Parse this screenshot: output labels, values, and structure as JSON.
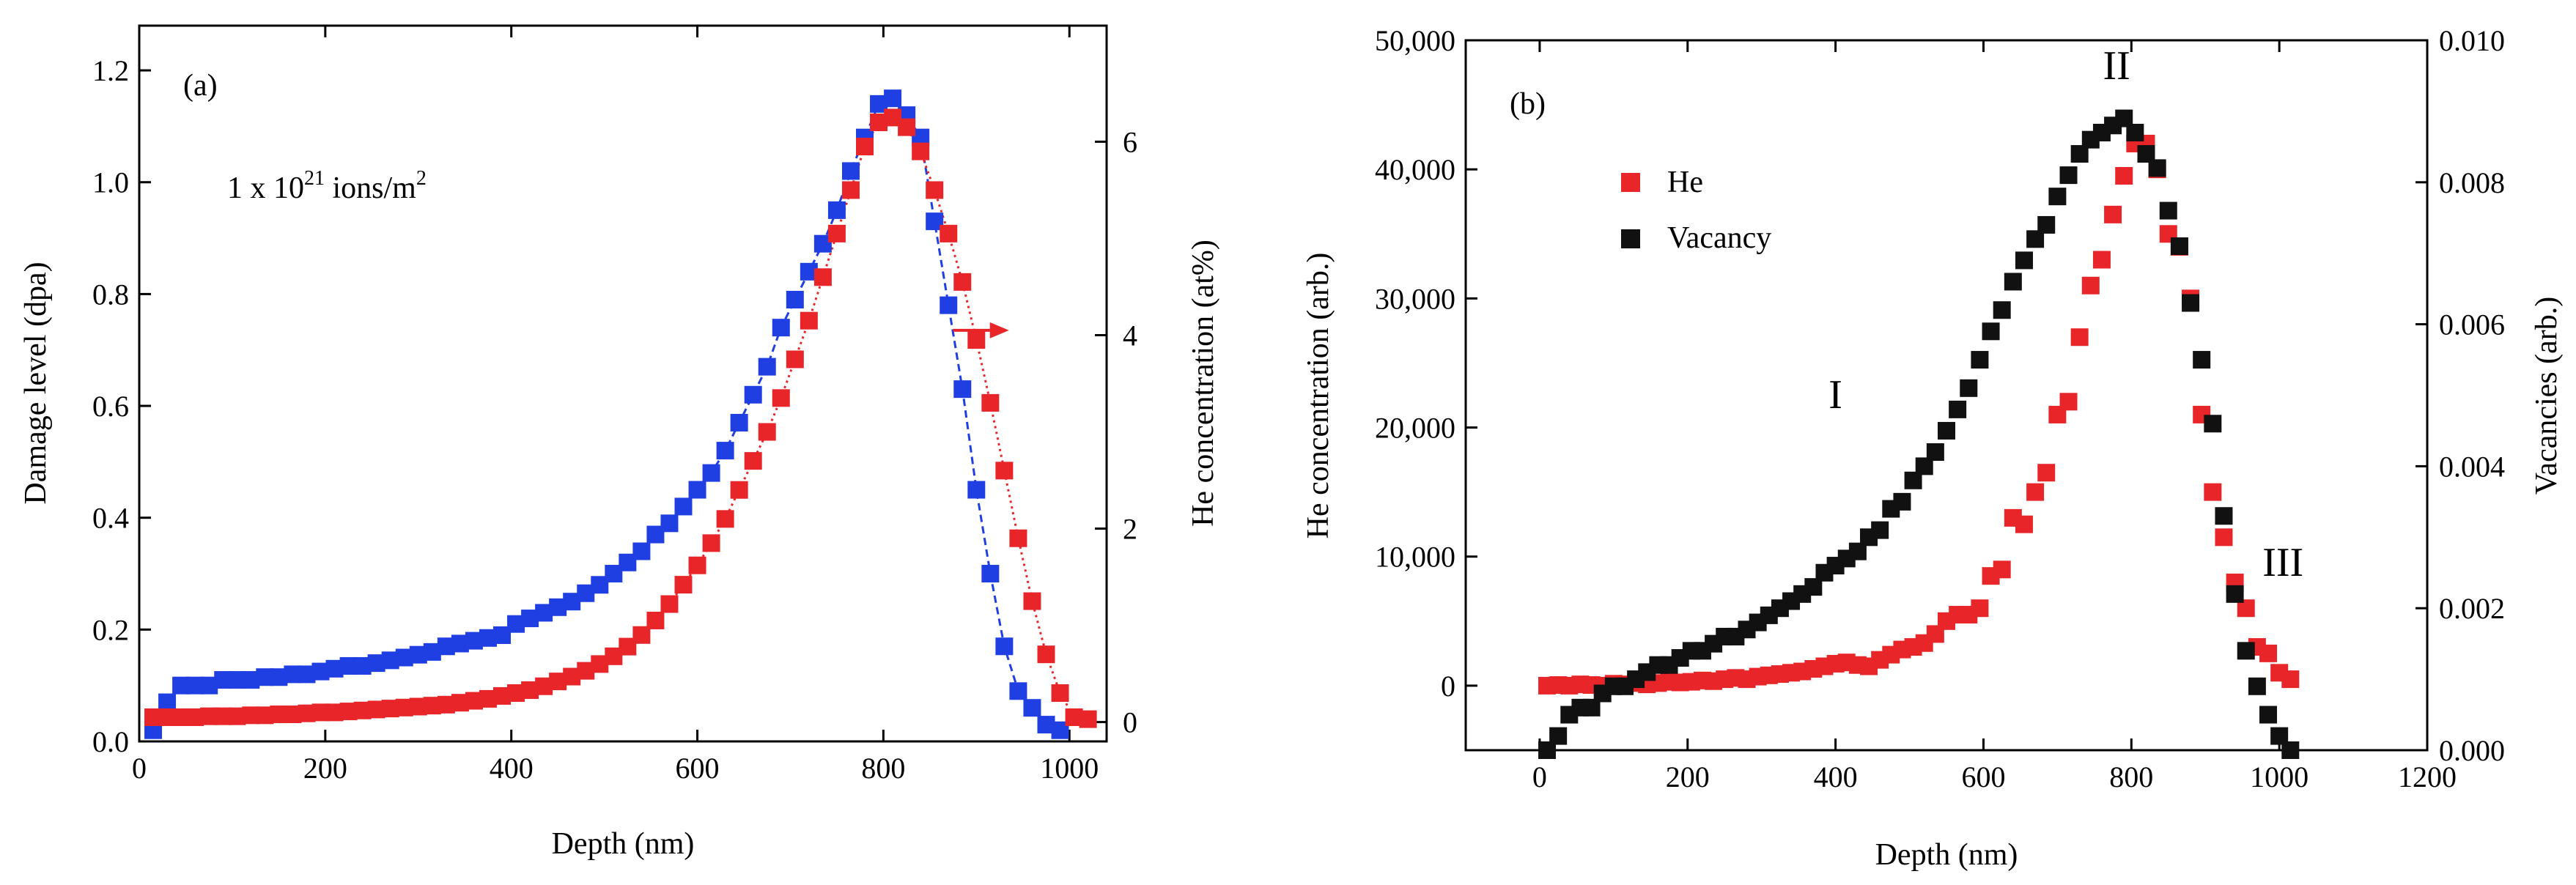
{
  "chart_data": [
    {
      "type": "scatter",
      "panel_label": "(a)",
      "annotation": {
        "prefix": "1 x 10",
        "exponent": "21",
        "unit_prefix": " ions/m",
        "unit_exponent": "2"
      },
      "xlabel": "Depth (nm)",
      "ylabel_left": "Damage level (dpa)",
      "ylabel_right": "He concentration (at%)",
      "xlim": [
        0,
        1040
      ],
      "ylim_left": [
        0,
        1.28
      ],
      "ylim_right": [
        -0.2,
        7.2
      ],
      "xticks": [
        0,
        200,
        400,
        600,
        800,
        1000
      ],
      "yticks_left": [
        0.0,
        0.2,
        0.4,
        0.6,
        0.8,
        1.0,
        1.2
      ],
      "yticks_right": [
        0,
        2,
        4,
        6
      ],
      "arrow": {
        "x": 875,
        "y_right": 4.05,
        "x_end": 935,
        "color": "#e8262a",
        "points": "right"
      },
      "series": [
        {
          "name": "Damage level",
          "axis": "left",
          "color": "#1f3fe3",
          "line": "dashed",
          "x": [
            15,
            30,
            45,
            60,
            75,
            90,
            105,
            120,
            135,
            150,
            165,
            180,
            195,
            210,
            225,
            240,
            255,
            270,
            285,
            300,
            315,
            330,
            345,
            360,
            375,
            390,
            405,
            420,
            435,
            450,
            465,
            480,
            495,
            510,
            525,
            540,
            555,
            570,
            585,
            600,
            615,
            630,
            645,
            660,
            675,
            690,
            705,
            720,
            735,
            750,
            765,
            780,
            795,
            810,
            825,
            840,
            855,
            870,
            885,
            900,
            915,
            930,
            945,
            960,
            975,
            990
          ],
          "y": [
            0.02,
            0.07,
            0.1,
            0.1,
            0.1,
            0.11,
            0.11,
            0.11,
            0.115,
            0.115,
            0.12,
            0.12,
            0.125,
            0.13,
            0.135,
            0.135,
            0.14,
            0.145,
            0.15,
            0.155,
            0.16,
            0.17,
            0.175,
            0.18,
            0.185,
            0.19,
            0.21,
            0.22,
            0.23,
            0.24,
            0.25,
            0.265,
            0.28,
            0.3,
            0.32,
            0.34,
            0.37,
            0.39,
            0.42,
            0.45,
            0.48,
            0.52,
            0.57,
            0.62,
            0.67,
            0.74,
            0.79,
            0.84,
            0.89,
            0.95,
            1.02,
            1.08,
            1.14,
            1.15,
            1.12,
            1.08,
            0.93,
            0.78,
            0.63,
            0.45,
            0.3,
            0.17,
            0.09,
            0.06,
            0.03,
            0.02
          ]
        },
        {
          "name": "He concentration",
          "axis": "right",
          "color": "#e8262a",
          "line": "dotted",
          "x": [
            15,
            30,
            45,
            60,
            75,
            90,
            105,
            120,
            135,
            150,
            165,
            180,
            195,
            210,
            225,
            240,
            255,
            270,
            285,
            300,
            315,
            330,
            345,
            360,
            375,
            390,
            405,
            420,
            435,
            450,
            465,
            480,
            495,
            510,
            525,
            540,
            555,
            570,
            585,
            600,
            615,
            630,
            645,
            660,
            675,
            690,
            705,
            720,
            735,
            750,
            765,
            780,
            795,
            810,
            825,
            840,
            855,
            870,
            885,
            900,
            915,
            930,
            945,
            960,
            975,
            990,
            1005,
            1020
          ],
          "y": [
            0.05,
            0.05,
            0.05,
            0.05,
            0.06,
            0.06,
            0.06,
            0.07,
            0.07,
            0.08,
            0.08,
            0.09,
            0.1,
            0.1,
            0.11,
            0.12,
            0.13,
            0.14,
            0.15,
            0.16,
            0.17,
            0.18,
            0.2,
            0.22,
            0.24,
            0.27,
            0.3,
            0.33,
            0.37,
            0.42,
            0.47,
            0.53,
            0.6,
            0.68,
            0.78,
            0.9,
            1.05,
            1.22,
            1.42,
            1.62,
            1.85,
            2.1,
            2.4,
            2.7,
            3.0,
            3.35,
            3.75,
            4.15,
            4.6,
            5.05,
            5.5,
            5.95,
            6.2,
            6.25,
            6.15,
            5.9,
            5.5,
            5.05,
            4.55,
            3.95,
            3.3,
            2.6,
            1.9,
            1.25,
            0.7,
            0.3,
            0.05,
            0.03
          ]
        }
      ]
    },
    {
      "type": "scatter",
      "panel_label": "(b)",
      "xlabel": "Depth (nm)",
      "ylabel_left": "He concentration (arb.)",
      "ylabel_right": "Vacancies (arb.)",
      "xlim": [
        -100,
        1200
      ],
      "ylim_left": [
        -5000,
        50000
      ],
      "ylim_right": [
        0.0,
        0.01
      ],
      "xticks": [
        0,
        200,
        400,
        600,
        800,
        1000,
        1200
      ],
      "yticks_left": [
        0,
        10000,
        20000,
        30000,
        40000,
        50000
      ],
      "yticks_left_labels": [
        "0",
        "10,000",
        "20,000",
        "30,000",
        "40,000",
        "50,000"
      ],
      "yticks_right": [
        0.0,
        0.002,
        0.004,
        0.006,
        0.008,
        0.01
      ],
      "yticks_right_labels": [
        "0.000",
        "0.002",
        "0.004",
        "0.006",
        "0.008",
        "0.010"
      ],
      "region_labels": [
        {
          "text": "I",
          "x": 400,
          "y_left": 21500
        },
        {
          "text": "II",
          "x": 780,
          "y_left": 47000
        },
        {
          "text": "III",
          "x": 1005,
          "y_left": 8500
        }
      ],
      "legend": [
        {
          "label": "He",
          "color": "#e8262a"
        },
        {
          "label": "Vacancy",
          "color": "#111111"
        }
      ],
      "series": [
        {
          "name": "He",
          "axis": "left",
          "color": "#e8262a",
          "x": [
            10,
            25,
            40,
            55,
            70,
            85,
            100,
            115,
            130,
            145,
            160,
            175,
            190,
            205,
            220,
            235,
            250,
            265,
            280,
            295,
            310,
            325,
            340,
            355,
            370,
            385,
            400,
            415,
            430,
            445,
            460,
            475,
            490,
            505,
            520,
            535,
            550,
            565,
            580,
            595,
            610,
            625,
            640,
            655,
            670,
            685,
            700,
            715,
            730,
            745,
            760,
            775,
            790,
            805,
            820,
            835,
            850,
            865,
            880,
            895,
            910,
            925,
            940,
            955,
            970,
            985,
            1000,
            1015
          ],
          "y": [
            0,
            50,
            0,
            100,
            50,
            0,
            150,
            100,
            200,
            100,
            200,
            300,
            250,
            300,
            400,
            350,
            500,
            600,
            500,
            700,
            800,
            900,
            1000,
            1100,
            1300,
            1500,
            1700,
            1800,
            1600,
            1500,
            2000,
            2400,
            2800,
            3000,
            3300,
            4000,
            5000,
            5500,
            5500,
            6000,
            8500,
            9000,
            13000,
            12500,
            15000,
            16500,
            21000,
            22000,
            27000,
            31000,
            33000,
            36500,
            39500,
            42000,
            42000,
            40000,
            35000,
            34000,
            30000,
            21000,
            15000,
            11500,
            8000,
            6000,
            3000,
            2500,
            1000,
            500
          ]
        },
        {
          "name": "Vacancy",
          "axis": "right",
          "color": "#111111",
          "x": [
            10,
            25,
            40,
            55,
            70,
            85,
            100,
            115,
            130,
            145,
            160,
            175,
            190,
            205,
            220,
            235,
            250,
            265,
            280,
            295,
            310,
            325,
            340,
            355,
            370,
            385,
            400,
            415,
            430,
            445,
            460,
            475,
            490,
            505,
            520,
            535,
            550,
            565,
            580,
            595,
            610,
            625,
            640,
            655,
            670,
            685,
            700,
            715,
            730,
            745,
            760,
            775,
            790,
            805,
            820,
            835,
            850,
            865,
            880,
            895,
            910,
            925,
            940,
            955,
            970,
            985,
            1000,
            1015
          ],
          "y": [
            0.0,
            0.0002,
            0.0005,
            0.0006,
            0.0006,
            0.0008,
            0.0009,
            0.0009,
            0.001,
            0.0011,
            0.0012,
            0.0012,
            0.0013,
            0.0014,
            0.0014,
            0.0015,
            0.0016,
            0.0016,
            0.0017,
            0.0018,
            0.0019,
            0.002,
            0.0021,
            0.0022,
            0.0023,
            0.0025,
            0.0026,
            0.0027,
            0.0028,
            0.003,
            0.0031,
            0.0034,
            0.0035,
            0.0038,
            0.004,
            0.0042,
            0.0045,
            0.0048,
            0.0051,
            0.0055,
            0.0059,
            0.0062,
            0.0066,
            0.0069,
            0.0072,
            0.0074,
            0.0078,
            0.0081,
            0.0084,
            0.0086,
            0.0087,
            0.0088,
            0.0089,
            0.0087,
            0.0084,
            0.0082,
            0.0076,
            0.0071,
            0.0063,
            0.0055,
            0.0046,
            0.0033,
            0.0022,
            0.0014,
            0.0009,
            0.0005,
            0.0002,
            0.0
          ]
        }
      ]
    }
  ]
}
